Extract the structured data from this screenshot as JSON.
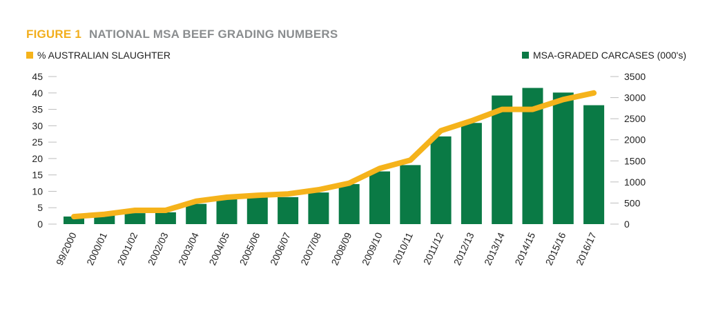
{
  "chart_data": {
    "type": "bar",
    "title_prefix": "FIGURE 1",
    "title": "NATIONAL MSA BEEF GRADING NUMBERS",
    "colors": {
      "bar": "#0a7a45",
      "line": "#f5b31b",
      "title_prefix": "#f2ae1c",
      "title": "#8a8d8f"
    },
    "categories": [
      "99/2000",
      "2000/01",
      "2001/02",
      "2002/03",
      "2003/04",
      "2004/05",
      "2005/06",
      "2006/07",
      "2007/08",
      "2008/09",
      "2009/10",
      "2010/11",
      "2011/12",
      "2012/13",
      "2013/14",
      "2014/15",
      "2015/16",
      "2016/17"
    ],
    "series": [
      {
        "name": "MSA-GRADED CARCASES (000's)",
        "type": "bar",
        "axis": "right",
        "values": [
          180,
          210,
          260,
          280,
          480,
          600,
          630,
          640,
          750,
          950,
          1250,
          1400,
          2080,
          2400,
          3050,
          3230,
          3120,
          2820
        ]
      },
      {
        "name": "% AUSTRALIAN SLAUGHTER",
        "type": "line",
        "axis": "left",
        "values": [
          2.3,
          3.0,
          4.2,
          4.2,
          7.0,
          8.2,
          8.8,
          9.2,
          10.5,
          12.5,
          17.0,
          19.5,
          28.5,
          31.5,
          35.0,
          35.0,
          38.0,
          40.0
        ]
      }
    ],
    "y_left": {
      "ylim": [
        0,
        45
      ],
      "ticks": [
        "0",
        "5",
        "10",
        "15",
        "20",
        "25",
        "30",
        "35",
        "40",
        "45"
      ]
    },
    "y_right": {
      "ylim": [
        0,
        3500
      ],
      "ticks": [
        "0",
        "500",
        "1000",
        "1500",
        "2000",
        "2500",
        "3000",
        "3500"
      ]
    },
    "legend": {
      "left": "% AUSTRALIAN SLAUGHTER",
      "right": "MSA-GRADED CARCASES (000's)"
    }
  }
}
